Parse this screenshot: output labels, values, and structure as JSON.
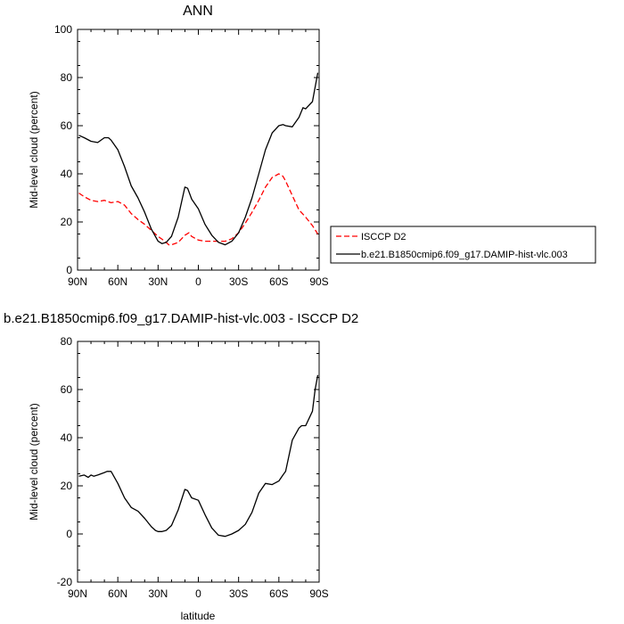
{
  "chart_data": [
    {
      "type": "line",
      "title": "ANN",
      "xlabel": "",
      "ylabel": "Mid-level cloud (percent)",
      "xlim": [
        90,
        -90
      ],
      "ylim": [
        0,
        100
      ],
      "x_ticks": [
        90,
        60,
        30,
        0,
        -30,
        -60,
        -90
      ],
      "x_tick_labels": [
        "90N",
        "60N",
        "30N",
        "0",
        "30S",
        "60S",
        "90S"
      ],
      "y_ticks": [
        0,
        20,
        40,
        60,
        80,
        100
      ],
      "legend_position": "right",
      "series": [
        {
          "name": "ISCCP D2",
          "color": "#ff0000",
          "dash": "dashed",
          "x": [
            89,
            85,
            80,
            75,
            70,
            65,
            60,
            55,
            50,
            45,
            40,
            35,
            30,
            25,
            22,
            20,
            15,
            10,
            7,
            5,
            0,
            -5,
            -10,
            -15,
            -20,
            -25,
            -30,
            -35,
            -40,
            -45,
            -50,
            -55,
            -60,
            -63,
            -65,
            -70,
            -75,
            -80,
            -85,
            -89
          ],
          "values": [
            32,
            30.5,
            29,
            28.5,
            29,
            28,
            28.5,
            27,
            23.5,
            21,
            19,
            16.5,
            14,
            12,
            10.5,
            10.5,
            11.5,
            14.5,
            15.5,
            14,
            12.5,
            12,
            12,
            12,
            12,
            13,
            15.5,
            19.5,
            24,
            29,
            34.5,
            38.5,
            40,
            39,
            37,
            31,
            25,
            22,
            18.5,
            15
          ]
        },
        {
          "name": "b.e21.B1850cmip6.f09_g17.DAMIP-hist-vlc.003",
          "color": "#000000",
          "dash": "solid",
          "x": [
            89,
            85,
            80,
            75,
            70,
            67,
            65,
            60,
            55,
            50,
            45,
            40,
            35,
            30,
            27,
            24,
            20,
            15,
            10,
            8,
            5,
            0,
            -5,
            -10,
            -15,
            -20,
            -25,
            -30,
            -35,
            -40,
            -45,
            -50,
            -55,
            -60,
            -63,
            -65,
            -70,
            -75,
            -78,
            -80,
            -85,
            -89
          ],
          "values": [
            56,
            55,
            53.5,
            53,
            55,
            55,
            54,
            50,
            43,
            35,
            30,
            24,
            17,
            12,
            11,
            11.5,
            14,
            22,
            34.5,
            34,
            29.5,
            25.5,
            19,
            14.5,
            11.5,
            10.5,
            12,
            15.5,
            22,
            30,
            40,
            50,
            57,
            60,
            60.5,
            60,
            59.5,
            63.5,
            67.5,
            67,
            70,
            82
          ]
        }
      ]
    },
    {
      "type": "line",
      "title": "b.e21.B1850cmip6.f09_g17.DAMIP-hist-vlc.003 - ISCCP D2",
      "xlabel": "latitude",
      "ylabel": "Mid-level cloud (percent)",
      "xlim": [
        90,
        -90
      ],
      "ylim": [
        -20,
        80
      ],
      "x_ticks": [
        90,
        60,
        30,
        0,
        -30,
        -60,
        -90
      ],
      "x_tick_labels": [
        "90N",
        "60N",
        "30N",
        "0",
        "30S",
        "60S",
        "90S"
      ],
      "y_ticks": [
        -20,
        0,
        20,
        40,
        60,
        80
      ],
      "series": [
        {
          "color": "#000000",
          "dash": "solid",
          "x": [
            89,
            85,
            82,
            80,
            78,
            75,
            70,
            68,
            65,
            60,
            55,
            50,
            45,
            40,
            35,
            32,
            30,
            27,
            24,
            20,
            15,
            10,
            8,
            5,
            0,
            -5,
            -10,
            -15,
            -20,
            -25,
            -30,
            -35,
            -40,
            -45,
            -50,
            -55,
            -60,
            -63,
            -65,
            -70,
            -75,
            -77,
            -80,
            -85,
            -87,
            -89
          ],
          "values": [
            24,
            24.5,
            23.5,
            24.5,
            24,
            24.5,
            25.5,
            26,
            26,
            21,
            15,
            11,
            9.5,
            6.5,
            3,
            1.5,
            1,
            1,
            1.5,
            3.5,
            10,
            18.5,
            18,
            15,
            14,
            8,
            2.5,
            -0.5,
            -1,
            0,
            1.5,
            4,
            9,
            17,
            21,
            20.5,
            22,
            24.5,
            26,
            39,
            44,
            45,
            45,
            51,
            60,
            66
          ]
        }
      ]
    }
  ]
}
